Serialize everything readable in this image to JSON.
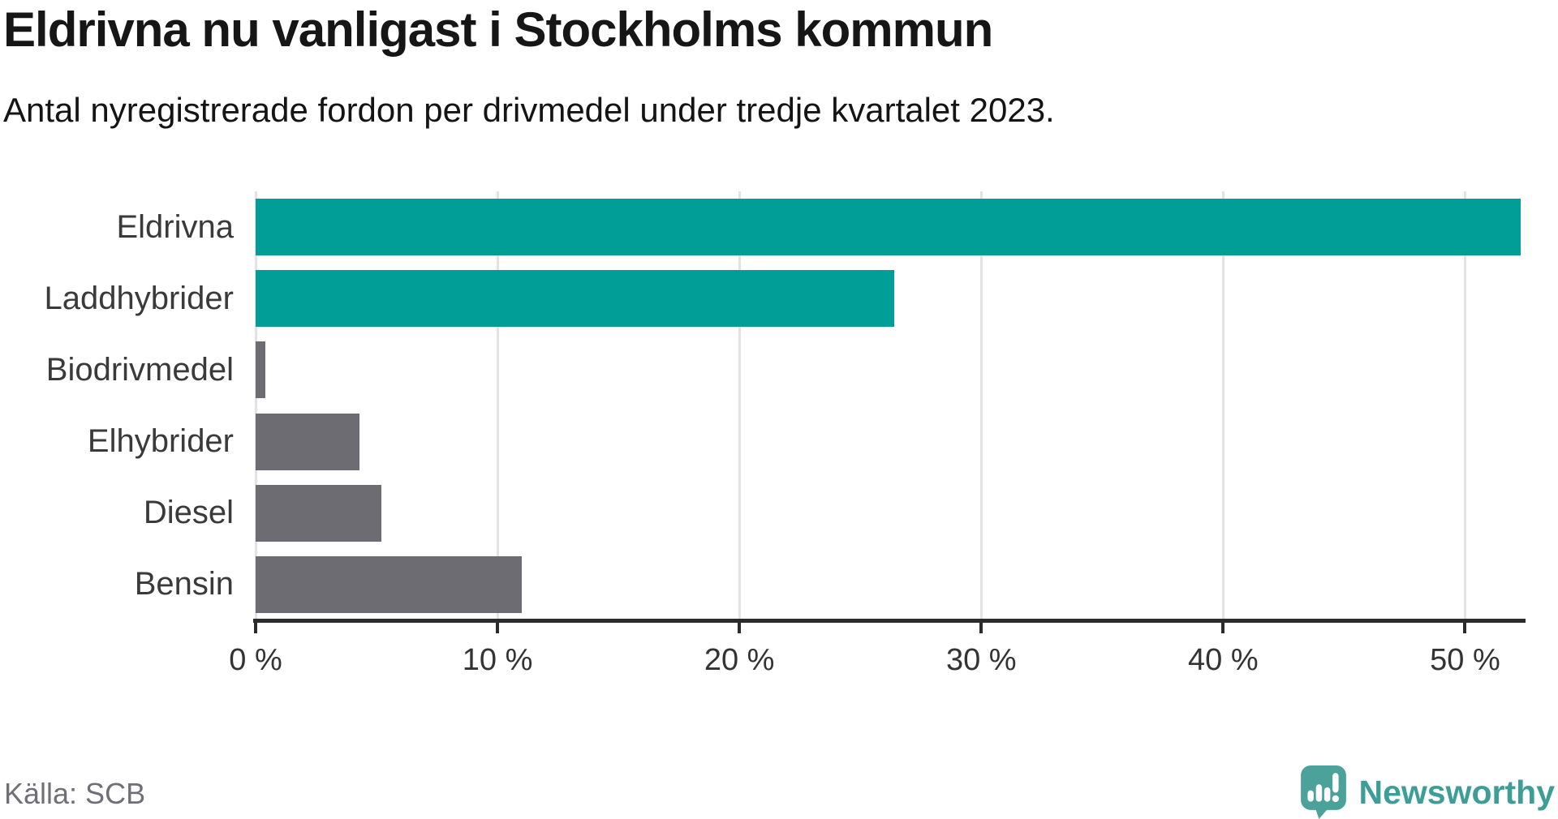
{
  "header": {
    "title": "Eldrivna nu vanligast i Stockholms kommun",
    "subtitle": "Antal nyregistrerade fordon per drivmedel under tredje kvartalet 2023."
  },
  "footer": {
    "source": "Källa: SCB",
    "brand_name": "Newsworthy"
  },
  "colors": {
    "highlight_bar": "#009e96",
    "default_bar": "#6c6c72",
    "grid": "#e3e3e3",
    "axis": "#2b2b2b",
    "category_label": "#3a3a3a",
    "tick_label": "#333333",
    "source_text": "#6f6f78",
    "brand": "#3d9d97"
  },
  "chart_data": {
    "type": "bar",
    "orientation": "horizontal",
    "title": "Eldrivna nu vanligast i Stockholms kommun",
    "subtitle": "Antal nyregistrerade fordon per drivmedel under tredje kvartalet 2023.",
    "categories": [
      "Eldrivna",
      "Laddhybrider",
      "Biodrivmedel",
      "Elhybrider",
      "Diesel",
      "Bensin"
    ],
    "values": [
      52.3,
      26.4,
      0.4,
      4.3,
      5.2,
      11.0
    ],
    "unit": "%",
    "series_colors": [
      "highlight",
      "highlight",
      "default",
      "default",
      "default",
      "default"
    ],
    "xlim": [
      0,
      52.4
    ],
    "x_ticks": [
      {
        "value": 0,
        "label": "0 %"
      },
      {
        "value": 10,
        "label": "10 %"
      },
      {
        "value": 20,
        "label": "20 %"
      },
      {
        "value": 30,
        "label": "30 %"
      },
      {
        "value": 40,
        "label": "40 %"
      },
      {
        "value": 50,
        "label": "50 %"
      }
    ],
    "grid": "vertical",
    "legend": "none"
  }
}
